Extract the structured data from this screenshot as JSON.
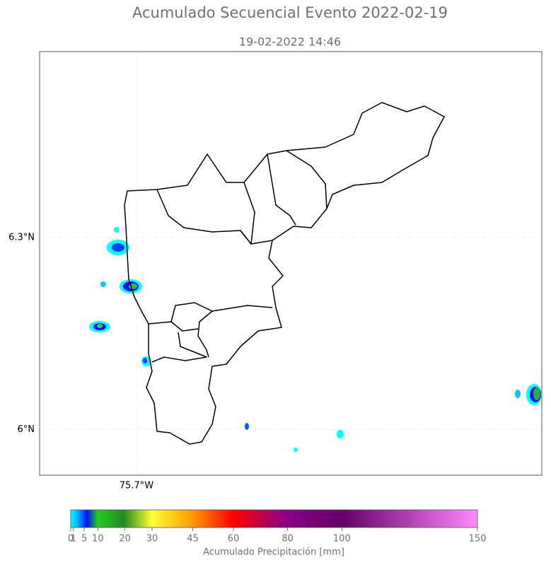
{
  "title": "Acumulado Secuencial Evento 2022-02-19",
  "subtitle": "19-02-2022 14:46",
  "map": {
    "lat_lim": [
      5.929,
      6.59
    ],
    "lon_lim": [
      -75.851,
      -75.068
    ],
    "lat_ticks": [
      {
        "value": 6.3,
        "label": "6.3°N"
      },
      {
        "value": 6.0,
        "label": "6°N"
      }
    ],
    "lon_ticks": [
      {
        "value": -75.7,
        "label": "75.7°W"
      }
    ]
  },
  "colorbar": {
    "lim": [
      0,
      150
    ],
    "ticks": [
      0,
      1,
      5,
      10,
      20,
      30,
      45,
      60,
      80,
      100,
      150
    ],
    "label": "Acumulado Precipitación [mm]"
  }
}
